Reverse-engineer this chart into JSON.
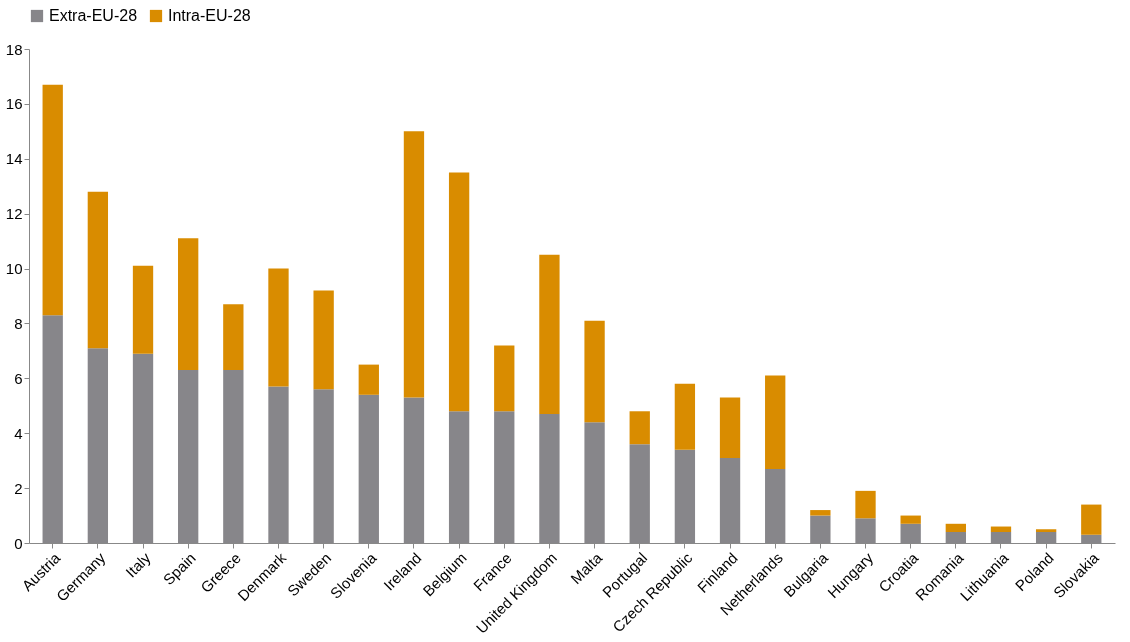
{
  "chart_data": {
    "type": "bar",
    "stacked": true,
    "legend": "top",
    "grid": false,
    "categories": [
      "Austria",
      "Germany",
      "Italy",
      "Spain",
      "Greece",
      "Denmark",
      "Sweden",
      "Slovenia",
      "Ireland",
      "Belgium",
      "France",
      "United Kingdom",
      "Malta",
      "Portugal",
      "Czech Republic",
      "Finland",
      "Netherlands",
      "Bulgaria",
      "Hungary",
      "Croatia",
      "Romania",
      "Lithuania",
      "Poland",
      "Slovakia"
    ],
    "series": [
      {
        "name": "Extra-EU-28",
        "color": "#87868a",
        "values": [
          8.3,
          7.1,
          6.9,
          6.3,
          6.3,
          5.7,
          5.6,
          5.4,
          5.3,
          4.8,
          4.8,
          4.7,
          4.4,
          3.6,
          3.4,
          3.1,
          2.7,
          1.0,
          0.9,
          0.7,
          0.4,
          0.4,
          0.4,
          0.3
        ]
      },
      {
        "name": "Intra-EU-28",
        "color": "#d98c00",
        "values": [
          8.4,
          5.7,
          3.2,
          4.8,
          2.4,
          4.3,
          3.6,
          1.1,
          9.7,
          8.7,
          2.4,
          5.8,
          3.7,
          1.2,
          2.4,
          2.2,
          3.4,
          0.2,
          1.0,
          0.3,
          0.3,
          0.2,
          0.1,
          1.1
        ]
      }
    ],
    "ylim": [
      0,
      18
    ],
    "yticks": [
      0,
      2,
      4,
      6,
      8,
      10,
      12,
      14,
      16,
      18
    ]
  }
}
